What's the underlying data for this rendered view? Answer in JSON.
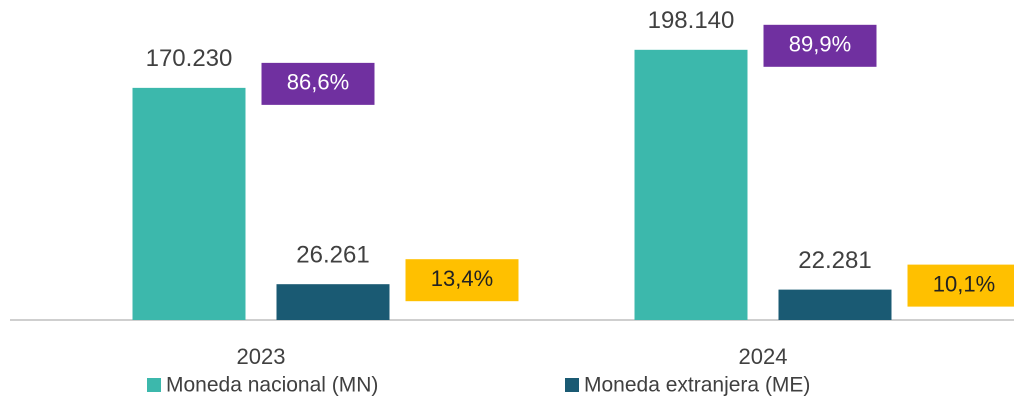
{
  "chart_data": {
    "type": "bar",
    "categories": [
      "2023",
      "2024"
    ],
    "series": [
      {
        "name": "Moneda nacional (MN)",
        "color": "#3cb8ac",
        "values": [
          170230,
          198140
        ],
        "value_labels": [
          "170.230",
          "198.140"
        ],
        "shares": [
          86.6,
          89.9
        ],
        "share_labels": [
          "86,6%",
          "89,9%"
        ],
        "share_color": "#7030a0",
        "share_text_color": "#ffffff"
      },
      {
        "name": "Moneda extranjera (ME)",
        "color": "#1a5a73",
        "values": [
          26261,
          22281
        ],
        "value_labels": [
          "26.261",
          "22.281"
        ],
        "shares": [
          13.4,
          10.1
        ],
        "share_labels": [
          "13,4%",
          "10,1%"
        ],
        "share_color": "#ffc000",
        "share_text_color": "#222222"
      }
    ],
    "ylim": [
      0,
      220000
    ],
    "legend": "bottom"
  }
}
